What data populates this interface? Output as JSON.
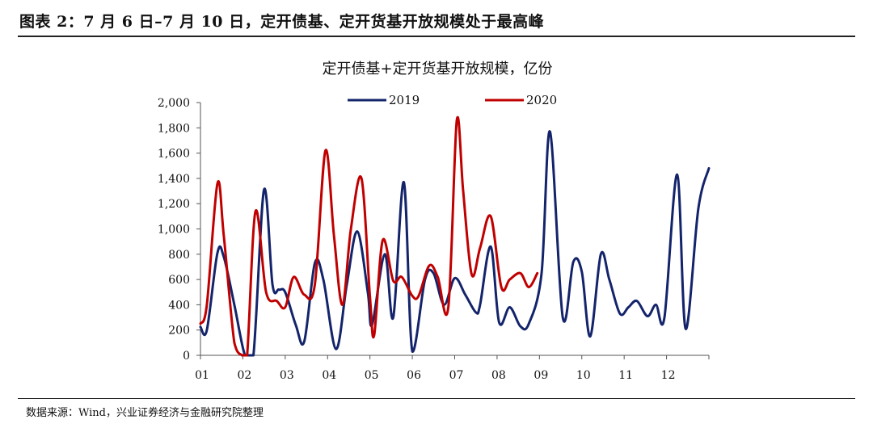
{
  "header": {
    "title": "图表 2：7 月 6 日–7 月 10 日，定开债基、定开货基开放规模处于最高峰"
  },
  "footer": {
    "source": "数据来源：Wind，兴业证券经济与金融研究院整理"
  },
  "chart_data": {
    "type": "line",
    "title": "定开债基+定开货基开放规模，亿份",
    "xlabel": "",
    "ylabel": "",
    "ylim": [
      0,
      2000
    ],
    "yticks": [
      "0",
      "200",
      "400",
      "600",
      "800",
      "1,000",
      "1,200",
      "1,400",
      "1,600",
      "1,800",
      "2,000"
    ],
    "xlim": [
      1,
      13
    ],
    "xticks": [
      "01",
      "02",
      "03",
      "04",
      "05",
      "06",
      "07",
      "08",
      "09",
      "10",
      "11",
      "12"
    ],
    "grid": false,
    "legend_position": "top",
    "series": [
      {
        "name": "2019",
        "color": "#14246b",
        "points": [
          [
            1.0,
            225
          ],
          [
            1.15,
            200
          ],
          [
            1.4,
            810
          ],
          [
            1.55,
            780
          ],
          [
            1.8,
            400
          ],
          [
            2.05,
            0
          ],
          [
            2.25,
            0
          ],
          [
            2.5,
            1310
          ],
          [
            2.7,
            560
          ],
          [
            2.85,
            520
          ],
          [
            3.0,
            500
          ],
          [
            3.25,
            240
          ],
          [
            3.45,
            110
          ],
          [
            3.7,
            730
          ],
          [
            3.9,
            600
          ],
          [
            4.2,
            50
          ],
          [
            4.45,
            550
          ],
          [
            4.7,
            980
          ],
          [
            4.95,
            500
          ],
          [
            5.05,
            240
          ],
          [
            5.35,
            800
          ],
          [
            5.55,
            300
          ],
          [
            5.8,
            1370
          ],
          [
            6.0,
            30
          ],
          [
            6.3,
            600
          ],
          [
            6.5,
            650
          ],
          [
            6.75,
            400
          ],
          [
            7.0,
            610
          ],
          [
            7.25,
            480
          ],
          [
            7.5,
            340
          ],
          [
            7.6,
            400
          ],
          [
            7.85,
            860
          ],
          [
            8.05,
            260
          ],
          [
            8.3,
            380
          ],
          [
            8.55,
            230
          ],
          [
            8.75,
            250
          ],
          [
            9.05,
            650
          ],
          [
            9.25,
            1770
          ],
          [
            9.55,
            300
          ],
          [
            9.8,
            740
          ],
          [
            10.0,
            660
          ],
          [
            10.2,
            150
          ],
          [
            10.45,
            800
          ],
          [
            10.65,
            600
          ],
          [
            10.9,
            330
          ],
          [
            11.1,
            380
          ],
          [
            11.3,
            430
          ],
          [
            11.55,
            310
          ],
          [
            11.75,
            400
          ],
          [
            11.95,
            300
          ],
          [
            12.25,
            1430
          ],
          [
            12.45,
            210
          ],
          [
            12.75,
            1160
          ],
          [
            13.0,
            1480
          ]
        ]
      },
      {
        "name": "2020",
        "color": "#c00000",
        "points": [
          [
            1.0,
            250
          ],
          [
            1.15,
            400
          ],
          [
            1.4,
            1360
          ],
          [
            1.55,
            950
          ],
          [
            1.8,
            100
          ],
          [
            1.98,
            0
          ],
          [
            2.1,
            0
          ],
          [
            2.3,
            1140
          ],
          [
            2.55,
            500
          ],
          [
            2.8,
            430
          ],
          [
            3.0,
            380
          ],
          [
            3.2,
            620
          ],
          [
            3.45,
            480
          ],
          [
            3.7,
            560
          ],
          [
            3.95,
            1620
          ],
          [
            4.15,
            950
          ],
          [
            4.35,
            400
          ],
          [
            4.55,
            1000
          ],
          [
            4.8,
            1400
          ],
          [
            5.0,
            460
          ],
          [
            5.1,
            160
          ],
          [
            5.3,
            910
          ],
          [
            5.55,
            590
          ],
          [
            5.75,
            620
          ],
          [
            6.0,
            470
          ],
          [
            6.15,
            470
          ],
          [
            6.4,
            710
          ],
          [
            6.6,
            620
          ],
          [
            6.85,
            380
          ],
          [
            7.05,
            1860
          ],
          [
            7.2,
            1300
          ],
          [
            7.4,
            640
          ],
          [
            7.6,
            850
          ],
          [
            7.85,
            1100
          ],
          [
            8.1,
            540
          ],
          [
            8.3,
            600
          ],
          [
            8.55,
            650
          ],
          [
            8.75,
            540
          ],
          [
            8.95,
            650
          ]
        ]
      }
    ]
  }
}
